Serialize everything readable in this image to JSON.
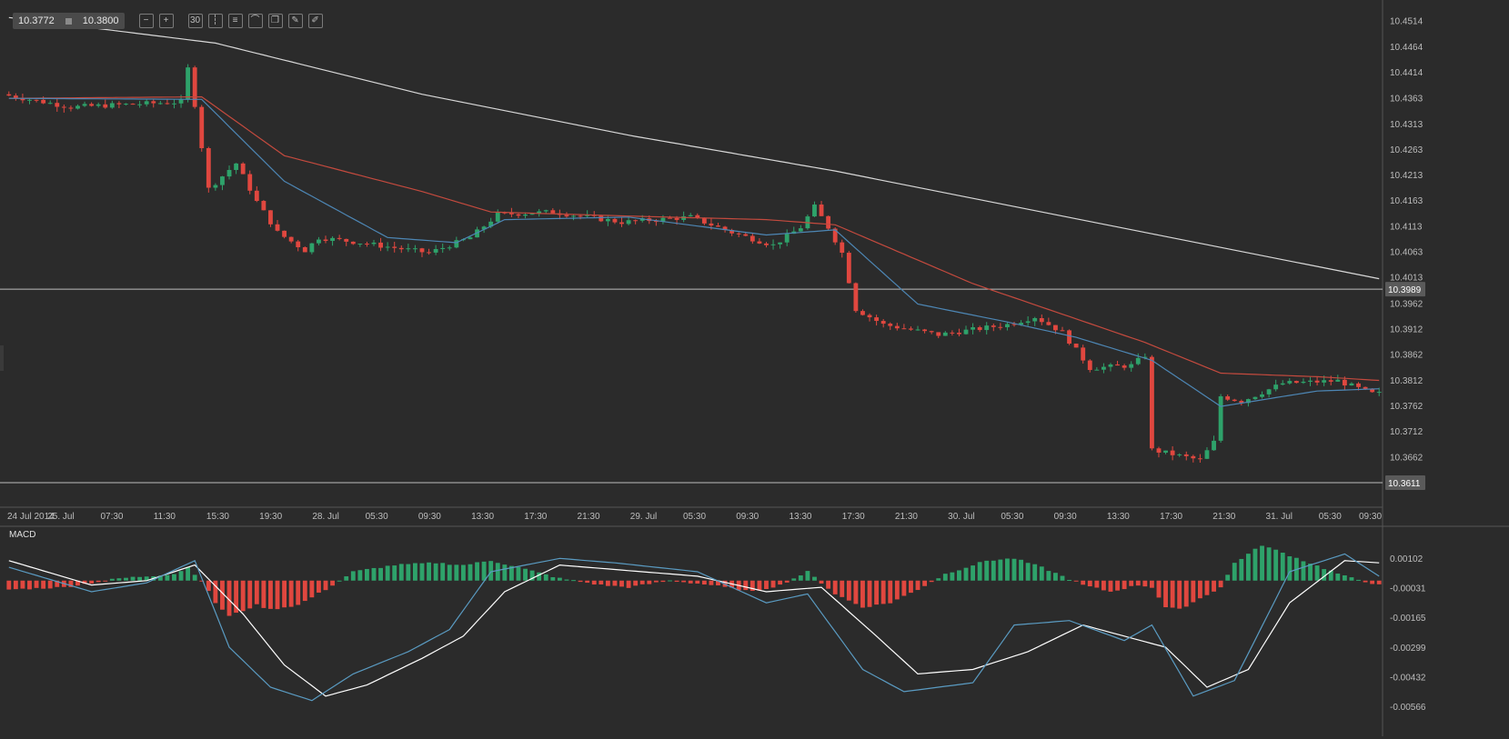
{
  "toolbar": {
    "bid": "10.3772",
    "ask": "10.3800",
    "tools": [
      {
        "name": "zoom-out-icon",
        "glyph": "−"
      },
      {
        "name": "zoom-in-icon",
        "glyph": "+"
      },
      {
        "name": "timeframe-30-icon",
        "glyph": "30"
      },
      {
        "name": "candles-icon",
        "glyph": "┆"
      },
      {
        "name": "indicators-icon",
        "glyph": "≡"
      },
      {
        "name": "chart-type-icon",
        "glyph": "⌒"
      },
      {
        "name": "duplicate-icon",
        "glyph": "❐"
      },
      {
        "name": "edit-icon",
        "glyph": "✎"
      },
      {
        "name": "draw-icon",
        "glyph": "✐"
      }
    ]
  },
  "colors": {
    "background": "#2b2b2b",
    "grid": "#3a3a3a",
    "up": "#2ea26a",
    "down": "#e0473f",
    "ma_fast": "#4d86b4",
    "ma_slow": "#c44a3e",
    "ma_long": "#d8d8d8",
    "macd_line": "#ffffff",
    "signal_line": "#5a9bc2",
    "hline": "#bdbdbd"
  },
  "chart_data": [
    {
      "type": "candlestick",
      "y_ticks": [
        "10.4514",
        "10.4464",
        "10.4414",
        "10.4363",
        "10.4313",
        "10.4263",
        "10.4213",
        "10.4163",
        "10.4113",
        "10.4063",
        "10.4013",
        "10.3962",
        "10.3912",
        "10.3862",
        "10.3812",
        "10.3762",
        "10.3712",
        "10.3662"
      ],
      "ylim": [
        10.3563,
        10.454
      ],
      "horizontal_lines": [
        {
          "value": 10.3989,
          "label": "10.3989"
        },
        {
          "value": 10.3611,
          "label": "10.3611"
        }
      ],
      "x_labels": [
        "24 Jul 2014",
        "25. Jul",
        "07:30",
        "11:30",
        "15:30",
        "19:30",
        "28. Jul",
        "05:30",
        "09:30",
        "13:30",
        "17:30",
        "21:30",
        "29. Jul",
        "05:30",
        "09:30",
        "13:30",
        "17:30",
        "21:30",
        "30. Jul",
        "05:30",
        "09:30",
        "13:30",
        "17:30",
        "21:30",
        "31. Jul",
        "05:30",
        "09:30"
      ],
      "candle_count": 200,
      "price_path": [
        [
          0,
          10.437
        ],
        [
          10,
          10.4345
        ],
        [
          26,
          10.4355
        ],
        [
          27,
          10.442
        ],
        [
          28,
          10.435
        ],
        [
          30,
          10.4185
        ],
        [
          34,
          10.4235
        ],
        [
          37,
          10.416
        ],
        [
          40,
          10.41
        ],
        [
          44,
          10.4065
        ],
        [
          46,
          10.409
        ],
        [
          52,
          10.408
        ],
        [
          62,
          10.406
        ],
        [
          68,
          10.409
        ],
        [
          72,
          10.4135
        ],
        [
          80,
          10.414
        ],
        [
          90,
          10.412
        ],
        [
          100,
          10.413
        ],
        [
          106,
          10.41
        ],
        [
          112,
          10.4075
        ],
        [
          116,
          10.411
        ],
        [
          118,
          10.415
        ],
        [
          120,
          10.411
        ],
        [
          122,
          10.406
        ],
        [
          124,
          10.395
        ],
        [
          128,
          10.392
        ],
        [
          136,
          10.39
        ],
        [
          146,
          10.392
        ],
        [
          150,
          10.3935
        ],
        [
          154,
          10.3905
        ],
        [
          158,
          10.3835
        ],
        [
          164,
          10.384
        ],
        [
          166,
          10.386
        ],
        [
          167,
          10.3675
        ],
        [
          174,
          10.3655
        ],
        [
          176,
          10.369
        ],
        [
          177,
          10.378
        ],
        [
          180,
          10.377
        ],
        [
          186,
          10.3805
        ],
        [
          194,
          10.381
        ],
        [
          199,
          10.3785
        ]
      ],
      "series": [
        {
          "name": "",
          "kind": "ma",
          "color_key": "ma_long",
          "path": [
            [
              0,
              10.452
            ],
            [
              30,
              10.447
            ],
            [
              60,
              10.437
            ],
            [
              90,
              10.429
            ],
            [
              120,
              10.422
            ],
            [
              150,
              10.414
            ],
            [
              180,
              10.406
            ],
            [
              200,
              10.4007
            ]
          ]
        },
        {
          "name": "",
          "kind": "ma",
          "color_key": "ma_slow",
          "path": [
            [
              0,
              10.4362
            ],
            [
              28,
              10.4365
            ],
            [
              40,
              10.425
            ],
            [
              60,
              10.418
            ],
            [
              70,
              10.414
            ],
            [
              90,
              10.4132
            ],
            [
              110,
              10.4125
            ],
            [
              120,
              10.4115
            ],
            [
              140,
              10.4
            ],
            [
              165,
              10.3885
            ],
            [
              176,
              10.3825
            ],
            [
              190,
              10.3818
            ],
            [
              200,
              10.381
            ]
          ]
        },
        {
          "name": "",
          "kind": "ma",
          "color_key": "ma_fast",
          "path": [
            [
              0,
              10.4362
            ],
            [
              28,
              10.436
            ],
            [
              40,
              10.42
            ],
            [
              55,
              10.409
            ],
            [
              65,
              10.408
            ],
            [
              72,
              10.4125
            ],
            [
              90,
              10.413
            ],
            [
              110,
              10.4095
            ],
            [
              120,
              10.4105
            ],
            [
              132,
              10.396
            ],
            [
              145,
              10.3925
            ],
            [
              155,
              10.3895
            ],
            [
              166,
              10.385
            ],
            [
              176,
              10.376
            ],
            [
              190,
              10.379
            ],
            [
              200,
              10.3795
            ]
          ]
        }
      ]
    },
    {
      "type": "bar",
      "title": "MACD",
      "y_ticks": [
        "0.00102",
        "-0.00031",
        "-0.00165",
        "-0.00299",
        "-0.00432",
        "-0.00566"
      ],
      "ylim": [
        -0.0066,
        0.0022
      ],
      "histogram_path": [
        [
          0,
          -0.0004
        ],
        [
          8,
          -0.0003
        ],
        [
          16,
          0.0001
        ],
        [
          24,
          0.0003
        ],
        [
          26,
          0.0006
        ],
        [
          28,
          0.0
        ],
        [
          30,
          -0.001
        ],
        [
          32,
          -0.0016
        ],
        [
          36,
          -0.0011
        ],
        [
          38,
          -0.0013
        ],
        [
          42,
          -0.0011
        ],
        [
          46,
          -0.0004
        ],
        [
          50,
          0.0004
        ],
        [
          56,
          0.0007
        ],
        [
          62,
          0.0008
        ],
        [
          66,
          0.0007
        ],
        [
          70,
          0.0009
        ],
        [
          74,
          0.0006
        ],
        [
          80,
          0.0001
        ],
        [
          86,
          -0.0002
        ],
        [
          90,
          -0.0003
        ],
        [
          96,
          0.0
        ],
        [
          102,
          -0.0002
        ],
        [
          108,
          -0.0005
        ],
        [
          112,
          -0.0002
        ],
        [
          116,
          0.0004
        ],
        [
          120,
          -0.0006
        ],
        [
          124,
          -0.0012
        ],
        [
          128,
          -0.001
        ],
        [
          132,
          -0.0004
        ],
        [
          136,
          0.0003
        ],
        [
          142,
          0.0009
        ],
        [
          146,
          0.001
        ],
        [
          150,
          0.0006
        ],
        [
          156,
          -0.0002
        ],
        [
          160,
          -0.0005
        ],
        [
          164,
          -0.0002
        ],
        [
          166,
          -0.0003
        ],
        [
          168,
          -0.0012
        ],
        [
          170,
          -0.0013
        ],
        [
          176,
          -0.0003
        ],
        [
          178,
          0.0008
        ],
        [
          182,
          0.0016
        ],
        [
          188,
          0.0009
        ],
        [
          194,
          0.0002
        ],
        [
          199,
          -0.0002
        ]
      ],
      "series": [
        {
          "name": "",
          "kind": "line",
          "color_key": "macd_line",
          "path": [
            [
              0,
              0.0009
            ],
            [
              12,
              -0.0002
            ],
            [
              20,
              0.0
            ],
            [
              27,
              0.0007
            ],
            [
              34,
              -0.0015
            ],
            [
              40,
              -0.0038
            ],
            [
              46,
              -0.0052
            ],
            [
              52,
              -0.0047
            ],
            [
              60,
              -0.0035
            ],
            [
              66,
              -0.0025
            ],
            [
              72,
              -0.0005
            ],
            [
              80,
              0.0007
            ],
            [
              88,
              0.0005
            ],
            [
              100,
              0.0002
            ],
            [
              110,
              -0.0005
            ],
            [
              118,
              -0.0003
            ],
            [
              126,
              -0.0025
            ],
            [
              132,
              -0.0042
            ],
            [
              140,
              -0.004
            ],
            [
              148,
              -0.0032
            ],
            [
              156,
              -0.002
            ],
            [
              162,
              -0.0025
            ],
            [
              168,
              -0.003
            ],
            [
              174,
              -0.0048
            ],
            [
              180,
              -0.004
            ],
            [
              186,
              -0.001
            ],
            [
              194,
              0.0009
            ],
            [
              199,
              0.0008
            ]
          ]
        },
        {
          "name": "",
          "kind": "line",
          "color_key": "signal_line",
          "path": [
            [
              0,
              0.0006
            ],
            [
              12,
              -0.0005
            ],
            [
              20,
              -0.0001
            ],
            [
              27,
              0.0009
            ],
            [
              32,
              -0.003
            ],
            [
              38,
              -0.0048
            ],
            [
              44,
              -0.0054
            ],
            [
              50,
              -0.0042
            ],
            [
              58,
              -0.0032
            ],
            [
              64,
              -0.0022
            ],
            [
              70,
              0.0004
            ],
            [
              80,
              0.001
            ],
            [
              88,
              0.0008
            ],
            [
              100,
              0.0004
            ],
            [
              110,
              -0.001
            ],
            [
              116,
              -0.0006
            ],
            [
              124,
              -0.004
            ],
            [
              130,
              -0.005
            ],
            [
              140,
              -0.0046
            ],
            [
              146,
              -0.002
            ],
            [
              154,
              -0.0018
            ],
            [
              162,
              -0.0027
            ],
            [
              166,
              -0.002
            ],
            [
              172,
              -0.0052
            ],
            [
              178,
              -0.0045
            ],
            [
              186,
              0.0004
            ],
            [
              194,
              0.0012
            ],
            [
              199,
              0.0002
            ]
          ]
        }
      ]
    }
  ]
}
